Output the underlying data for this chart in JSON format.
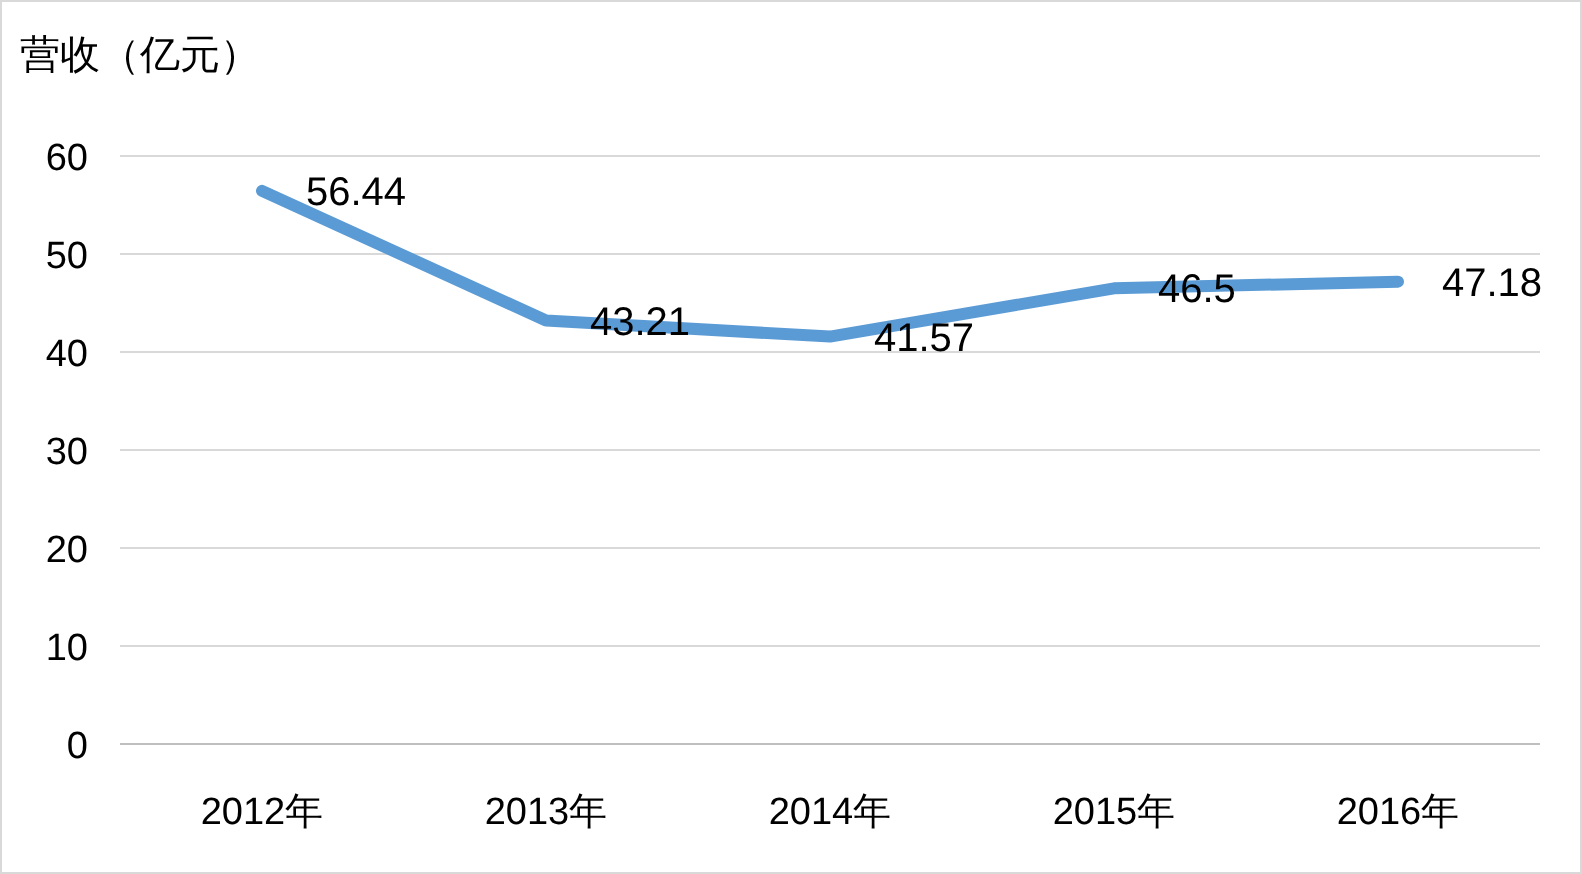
{
  "chart_data": {
    "type": "line",
    "title": "营收（亿元）",
    "categories": [
      "2012年",
      "2013年",
      "2014年",
      "2015年",
      "2016年"
    ],
    "series": [
      {
        "color": "#5b9bd5",
        "values": [
          56.44,
          43.21,
          41.57,
          46.5,
          47.18
        ]
      }
    ],
    "ylim": [
      0,
      60
    ],
    "yticks": [
      0,
      10,
      20,
      30,
      40,
      50,
      60
    ],
    "grid": "y",
    "data_labels": true
  }
}
